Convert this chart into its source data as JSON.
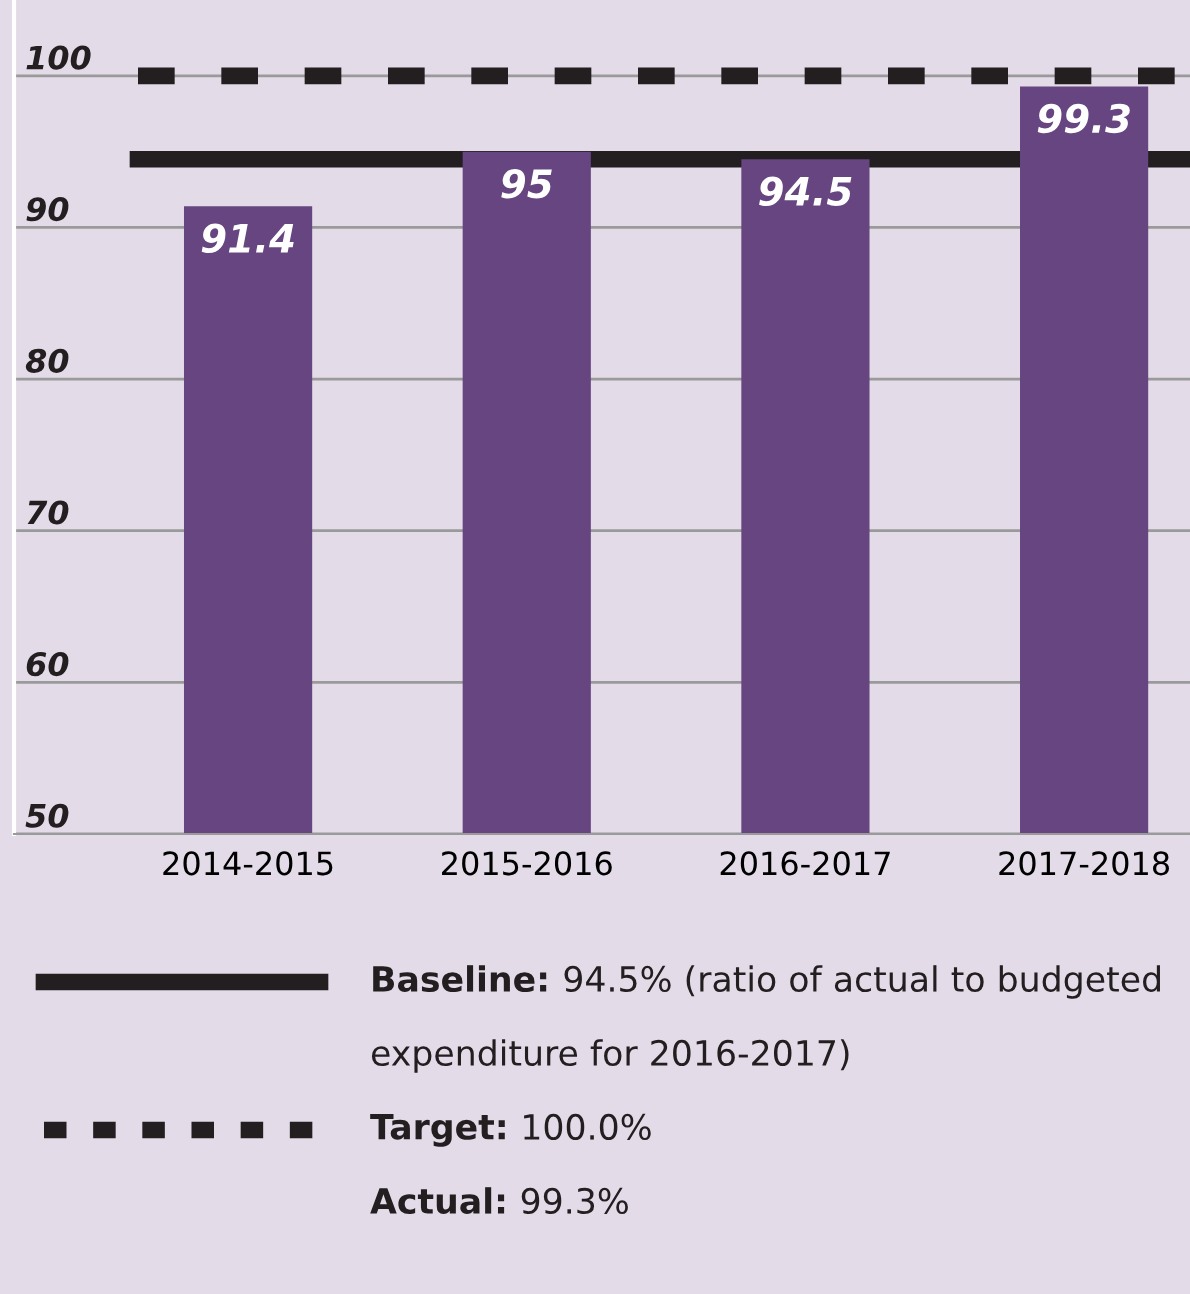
{
  "chart_data": {
    "type": "bar",
    "categories": [
      "2014-2015",
      "2015-2016",
      "2016-2017",
      "2017-2018"
    ],
    "values": [
      91.4,
      95,
      94.5,
      99.3
    ],
    "color": "#664580",
    "data_labels": true,
    "ylim": [
      50,
      105
    ],
    "yticks": [
      50,
      60,
      70,
      80,
      90,
      100
    ],
    "grid": "y",
    "ref_lines": [
      {
        "axis": "y",
        "value": 94.5,
        "line_style": "solid",
        "color": "#231f20"
      },
      {
        "axis": "y",
        "value": 100,
        "line_style": "dashed",
        "color": "#231f20"
      }
    ],
    "annotations": [
      "Baseline: 94.5% (ratio of actual to budgeted expenditure for 2016-2017)",
      "Target: 100.0%",
      "Actual: 99.3%"
    ]
  }
}
